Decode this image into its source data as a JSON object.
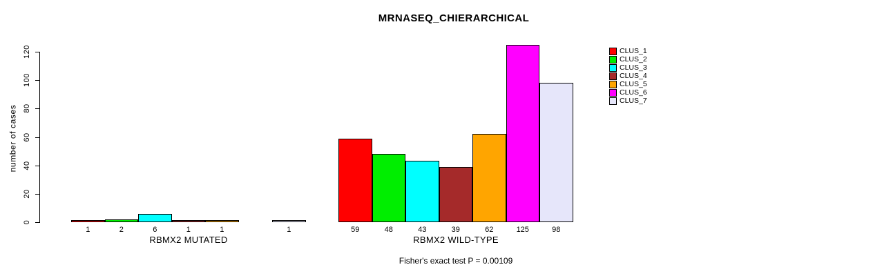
{
  "chart_data": {
    "type": "bar",
    "title": "MRNASEQ_CHIERARCHICAL",
    "ylabel": "number of cases",
    "ylim": [
      0,
      120
    ],
    "yticks": [
      0,
      20,
      40,
      60,
      80,
      100,
      120
    ],
    "grid": false,
    "legend_position": "right",
    "categories": [
      "CLUS_1",
      "CLUS_2",
      "CLUS_3",
      "CLUS_4",
      "CLUS_5",
      "CLUS_6",
      "CLUS_7"
    ],
    "colors": [
      "#FF0000",
      "#00EE00",
      "#00FFFF",
      "#A52A2A",
      "#FFA500",
      "#FF00FF",
      "#E6E6FA"
    ],
    "groups": [
      {
        "label": "RBMX2 MUTATED",
        "values": [
          1,
          2,
          6,
          1,
          1,
          0,
          1
        ]
      },
      {
        "label": "RBMX2 WILD-TYPE",
        "values": [
          59,
          48,
          43,
          39,
          62,
          125,
          98
        ]
      }
    ],
    "annotation": "Fisher's exact test P = 0.00109"
  }
}
